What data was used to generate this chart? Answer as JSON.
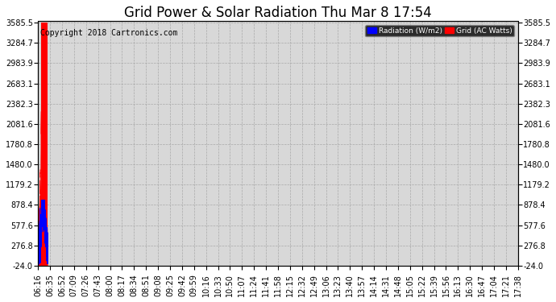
{
  "title": "Grid Power & Solar Radiation Thu Mar 8 17:54",
  "copyright": "Copyright 2018 Cartronics.com",
  "legend_radiation": "Radiation (W/m2)",
  "legend_grid": "Grid (AC Watts)",
  "y_min": -24.0,
  "y_max": 3585.5,
  "yticks": [
    -24.0,
    276.8,
    577.6,
    878.4,
    1179.2,
    1480.0,
    1780.8,
    2081.6,
    2382.3,
    2683.1,
    2983.9,
    3284.7,
    3585.5
  ],
  "xtick_labels": [
    "06:16",
    "06:35",
    "06:52",
    "07:09",
    "07:26",
    "07:43",
    "08:00",
    "08:17",
    "08:34",
    "08:51",
    "09:08",
    "09:25",
    "09:42",
    "09:59",
    "10:16",
    "10:33",
    "10:50",
    "11:07",
    "11:24",
    "11:41",
    "11:58",
    "12:15",
    "12:32",
    "12:49",
    "13:06",
    "13:23",
    "13:40",
    "13:57",
    "14:14",
    "14:31",
    "14:48",
    "15:05",
    "15:22",
    "15:39",
    "15:56",
    "16:13",
    "16:30",
    "16:47",
    "17:04",
    "17:21",
    "17:38"
  ],
  "bg_color": "#ffffff",
  "plot_bg_color": "#d8d8d8",
  "grid_color": "#aaaaaa",
  "red_fill_color": "#ff0000",
  "blue_line_color": "#0000ff",
  "title_fontsize": 12,
  "axis_fontsize": 7,
  "copyright_fontsize": 7,
  "n_ticks": 41
}
